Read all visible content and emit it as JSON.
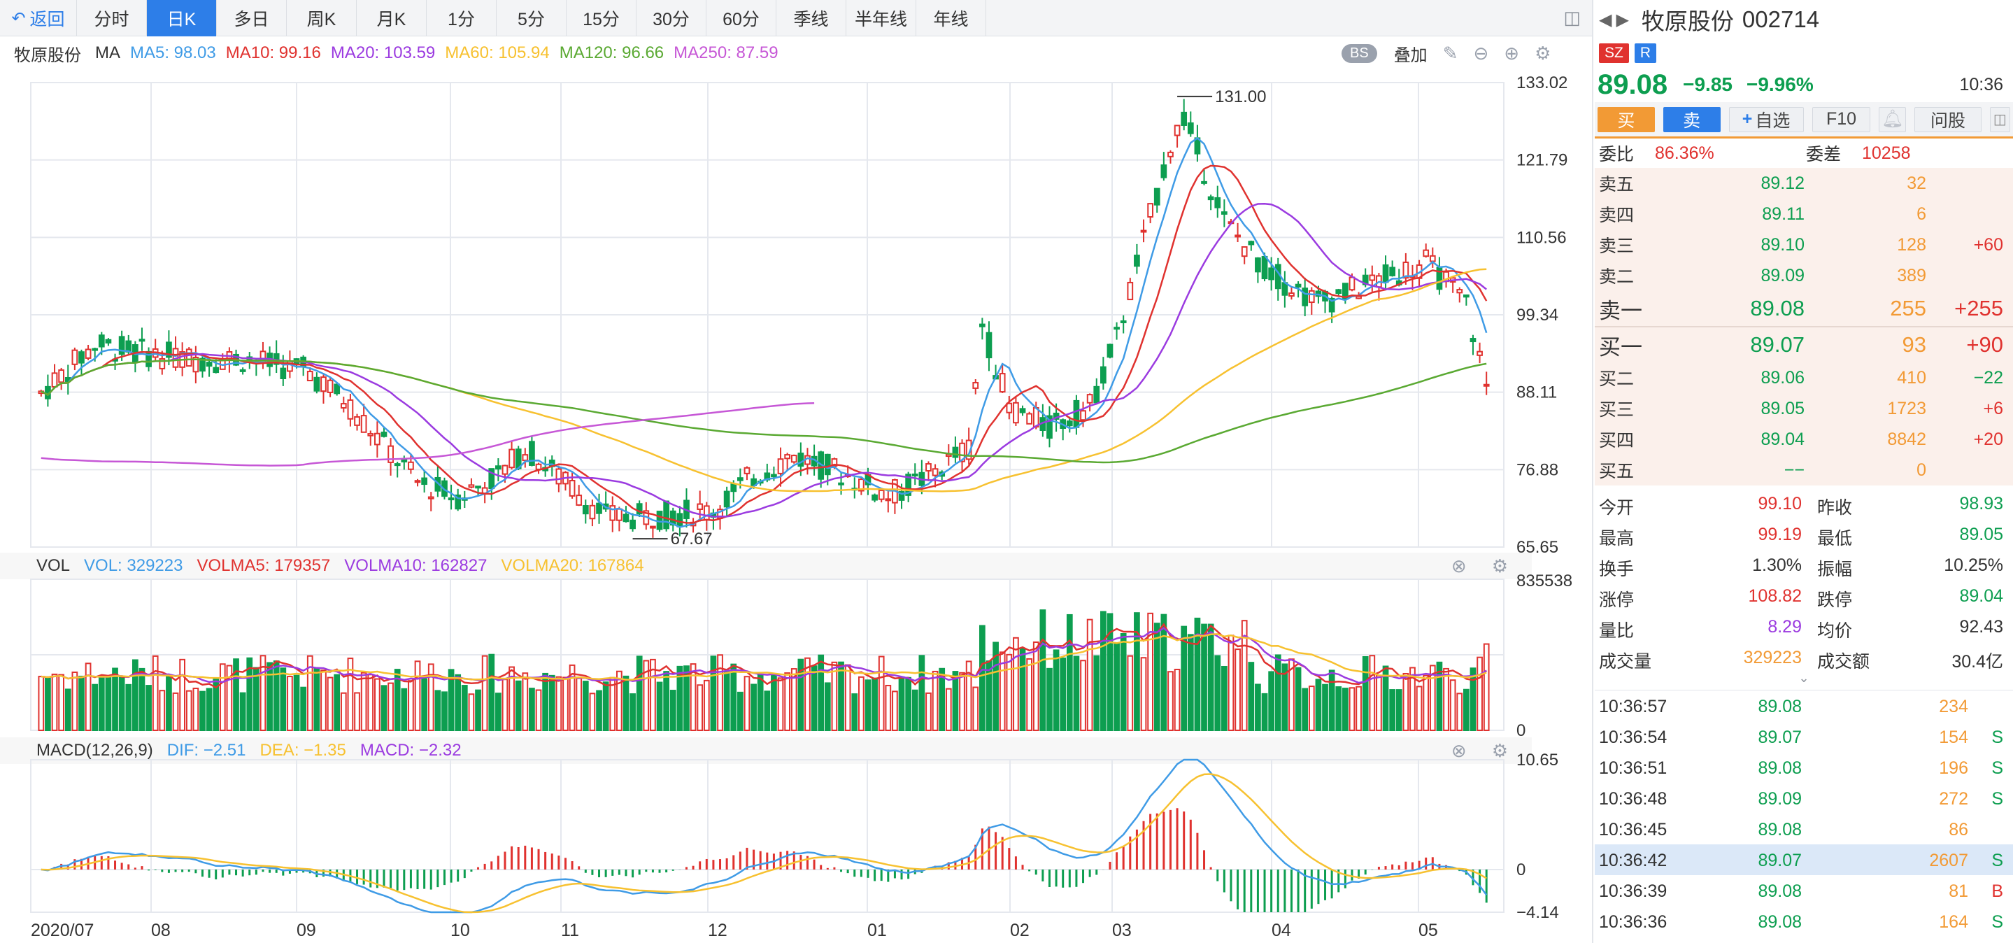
{
  "toolbar": {
    "back_label": "返回",
    "periods": [
      "分时",
      "日K",
      "多日",
      "周K",
      "月K",
      "1分",
      "5分",
      "15分",
      "30分",
      "60分",
      "季线",
      "半年线",
      "年线"
    ],
    "active_period": "日K"
  },
  "chart": {
    "stock_name": "牧原股份",
    "ma_legend": [
      {
        "label": "MA",
        "color": "#333333"
      },
      {
        "label": "MA5: 98.03",
        "color": "#3f9be6"
      },
      {
        "label": "MA10: 99.16",
        "color": "#e0322f"
      },
      {
        "label": "MA20: 103.59",
        "color": "#9b3be0"
      },
      {
        "label": "MA60: 105.94",
        "color": "#f7c130"
      },
      {
        "label": "MA120: 96.66",
        "color": "#5aa932"
      },
      {
        "label": "MA250: 87.59",
        "color": "#c657d6"
      }
    ],
    "bs_label": "BS",
    "overlay_label": "叠加",
    "price_axis": [
      "133.02",
      "121.79",
      "110.56",
      "99.34",
      "88.11",
      "76.88",
      "65.65"
    ],
    "high_marker": "131.00",
    "low_marker": "67.67",
    "vol_legend": [
      {
        "label": "VOL",
        "color": "#333333"
      },
      {
        "label": "VOL: 329223",
        "color": "#3f9be6"
      },
      {
        "label": "VOLMA5: 179357",
        "color": "#e0322f"
      },
      {
        "label": "VOLMA10: 162827",
        "color": "#9b3be0"
      },
      {
        "label": "VOLMA20: 167864",
        "color": "#f7c130"
      }
    ],
    "vol_axis": [
      "835538",
      "0"
    ],
    "macd_legend": [
      {
        "label": "MACD(12,26,9)",
        "color": "#333333"
      },
      {
        "label": "DIF: −2.51",
        "color": "#3f9be6"
      },
      {
        "label": "DEA: −1.35",
        "color": "#f7c130"
      },
      {
        "label": "MACD: −2.32",
        "color": "#9b3be0"
      }
    ],
    "macd_axis": [
      "10.65",
      "0",
      "−4.14"
    ],
    "x_labels": [
      "2020/07",
      "08",
      "09",
      "10",
      "11",
      "12",
      "01",
      "02",
      "03",
      "04",
      "05"
    ],
    "colors": {
      "up": "#e0322f",
      "down": "#0d9e50",
      "ma5": "#3f9be6",
      "ma10": "#e0322f",
      "ma20": "#9b3be0",
      "ma60": "#f7c130",
      "ma120": "#5aa932",
      "ma250": "#c657d6",
      "grid": "#e5e8ee"
    }
  },
  "side": {
    "name": "牧原股份",
    "code": "002714",
    "tags": [
      {
        "t": "SZ",
        "c": "#e0322f"
      },
      {
        "t": "R",
        "c": "#2d7ee8"
      }
    ],
    "price": "89.08",
    "change": "−9.85",
    "change_pct": "−9.96%",
    "time": "10:36",
    "actions": {
      "buy": "买",
      "sell": "卖",
      "watch": "自选",
      "f10": "F10",
      "ask": "问股"
    },
    "ratio_label": "委比",
    "ratio": "86.36%",
    "diff_label": "委差",
    "diff": "10258",
    "asks": [
      {
        "l": "卖五",
        "p": "89.12",
        "v": "32",
        "c": ""
      },
      {
        "l": "卖四",
        "p": "89.11",
        "v": "6",
        "c": ""
      },
      {
        "l": "卖三",
        "p": "89.10",
        "v": "128",
        "c": "+60"
      },
      {
        "l": "卖二",
        "p": "89.09",
        "v": "389",
        "c": ""
      },
      {
        "l": "卖一",
        "p": "89.08",
        "v": "255",
        "c": "+255"
      }
    ],
    "bids": [
      {
        "l": "买一",
        "p": "89.07",
        "v": "93",
        "c": "+90"
      },
      {
        "l": "买二",
        "p": "89.06",
        "v": "410",
        "c": "−22"
      },
      {
        "l": "买三",
        "p": "89.05",
        "v": "1723",
        "c": "+6"
      },
      {
        "l": "买四",
        "p": "89.04",
        "v": "8842",
        "c": "+20"
      },
      {
        "l": "买五",
        "p": "−−",
        "v": "0",
        "c": ""
      }
    ],
    "quote": [
      [
        "今开",
        "99.10",
        "昨收",
        "98.93"
      ],
      [
        "最高",
        "99.19",
        "最低",
        "89.05"
      ],
      [
        "换手",
        "1.30%",
        "振幅",
        "10.25%"
      ],
      [
        "涨停",
        "108.82",
        "跌停",
        "89.04"
      ],
      [
        "量比",
        "8.29",
        "均价",
        "92.43"
      ],
      [
        "成交量",
        "329223",
        "成交额",
        "30.4亿"
      ]
    ],
    "trades": [
      {
        "t": "10:36:57",
        "p": "89.08",
        "v": "234",
        "s": ""
      },
      {
        "t": "10:36:54",
        "p": "89.07",
        "v": "154",
        "s": "S"
      },
      {
        "t": "10:36:51",
        "p": "89.08",
        "v": "196",
        "s": "S"
      },
      {
        "t": "10:36:48",
        "p": "89.09",
        "v": "272",
        "s": "S"
      },
      {
        "t": "10:36:45",
        "p": "89.08",
        "v": "86",
        "s": ""
      },
      {
        "t": "10:36:42",
        "p": "89.07",
        "v": "2607",
        "s": "S"
      },
      {
        "t": "10:36:39",
        "p": "89.08",
        "v": "81",
        "s": "B"
      },
      {
        "t": "10:36:36",
        "p": "89.08",
        "v": "164",
        "s": "S"
      }
    ]
  }
}
